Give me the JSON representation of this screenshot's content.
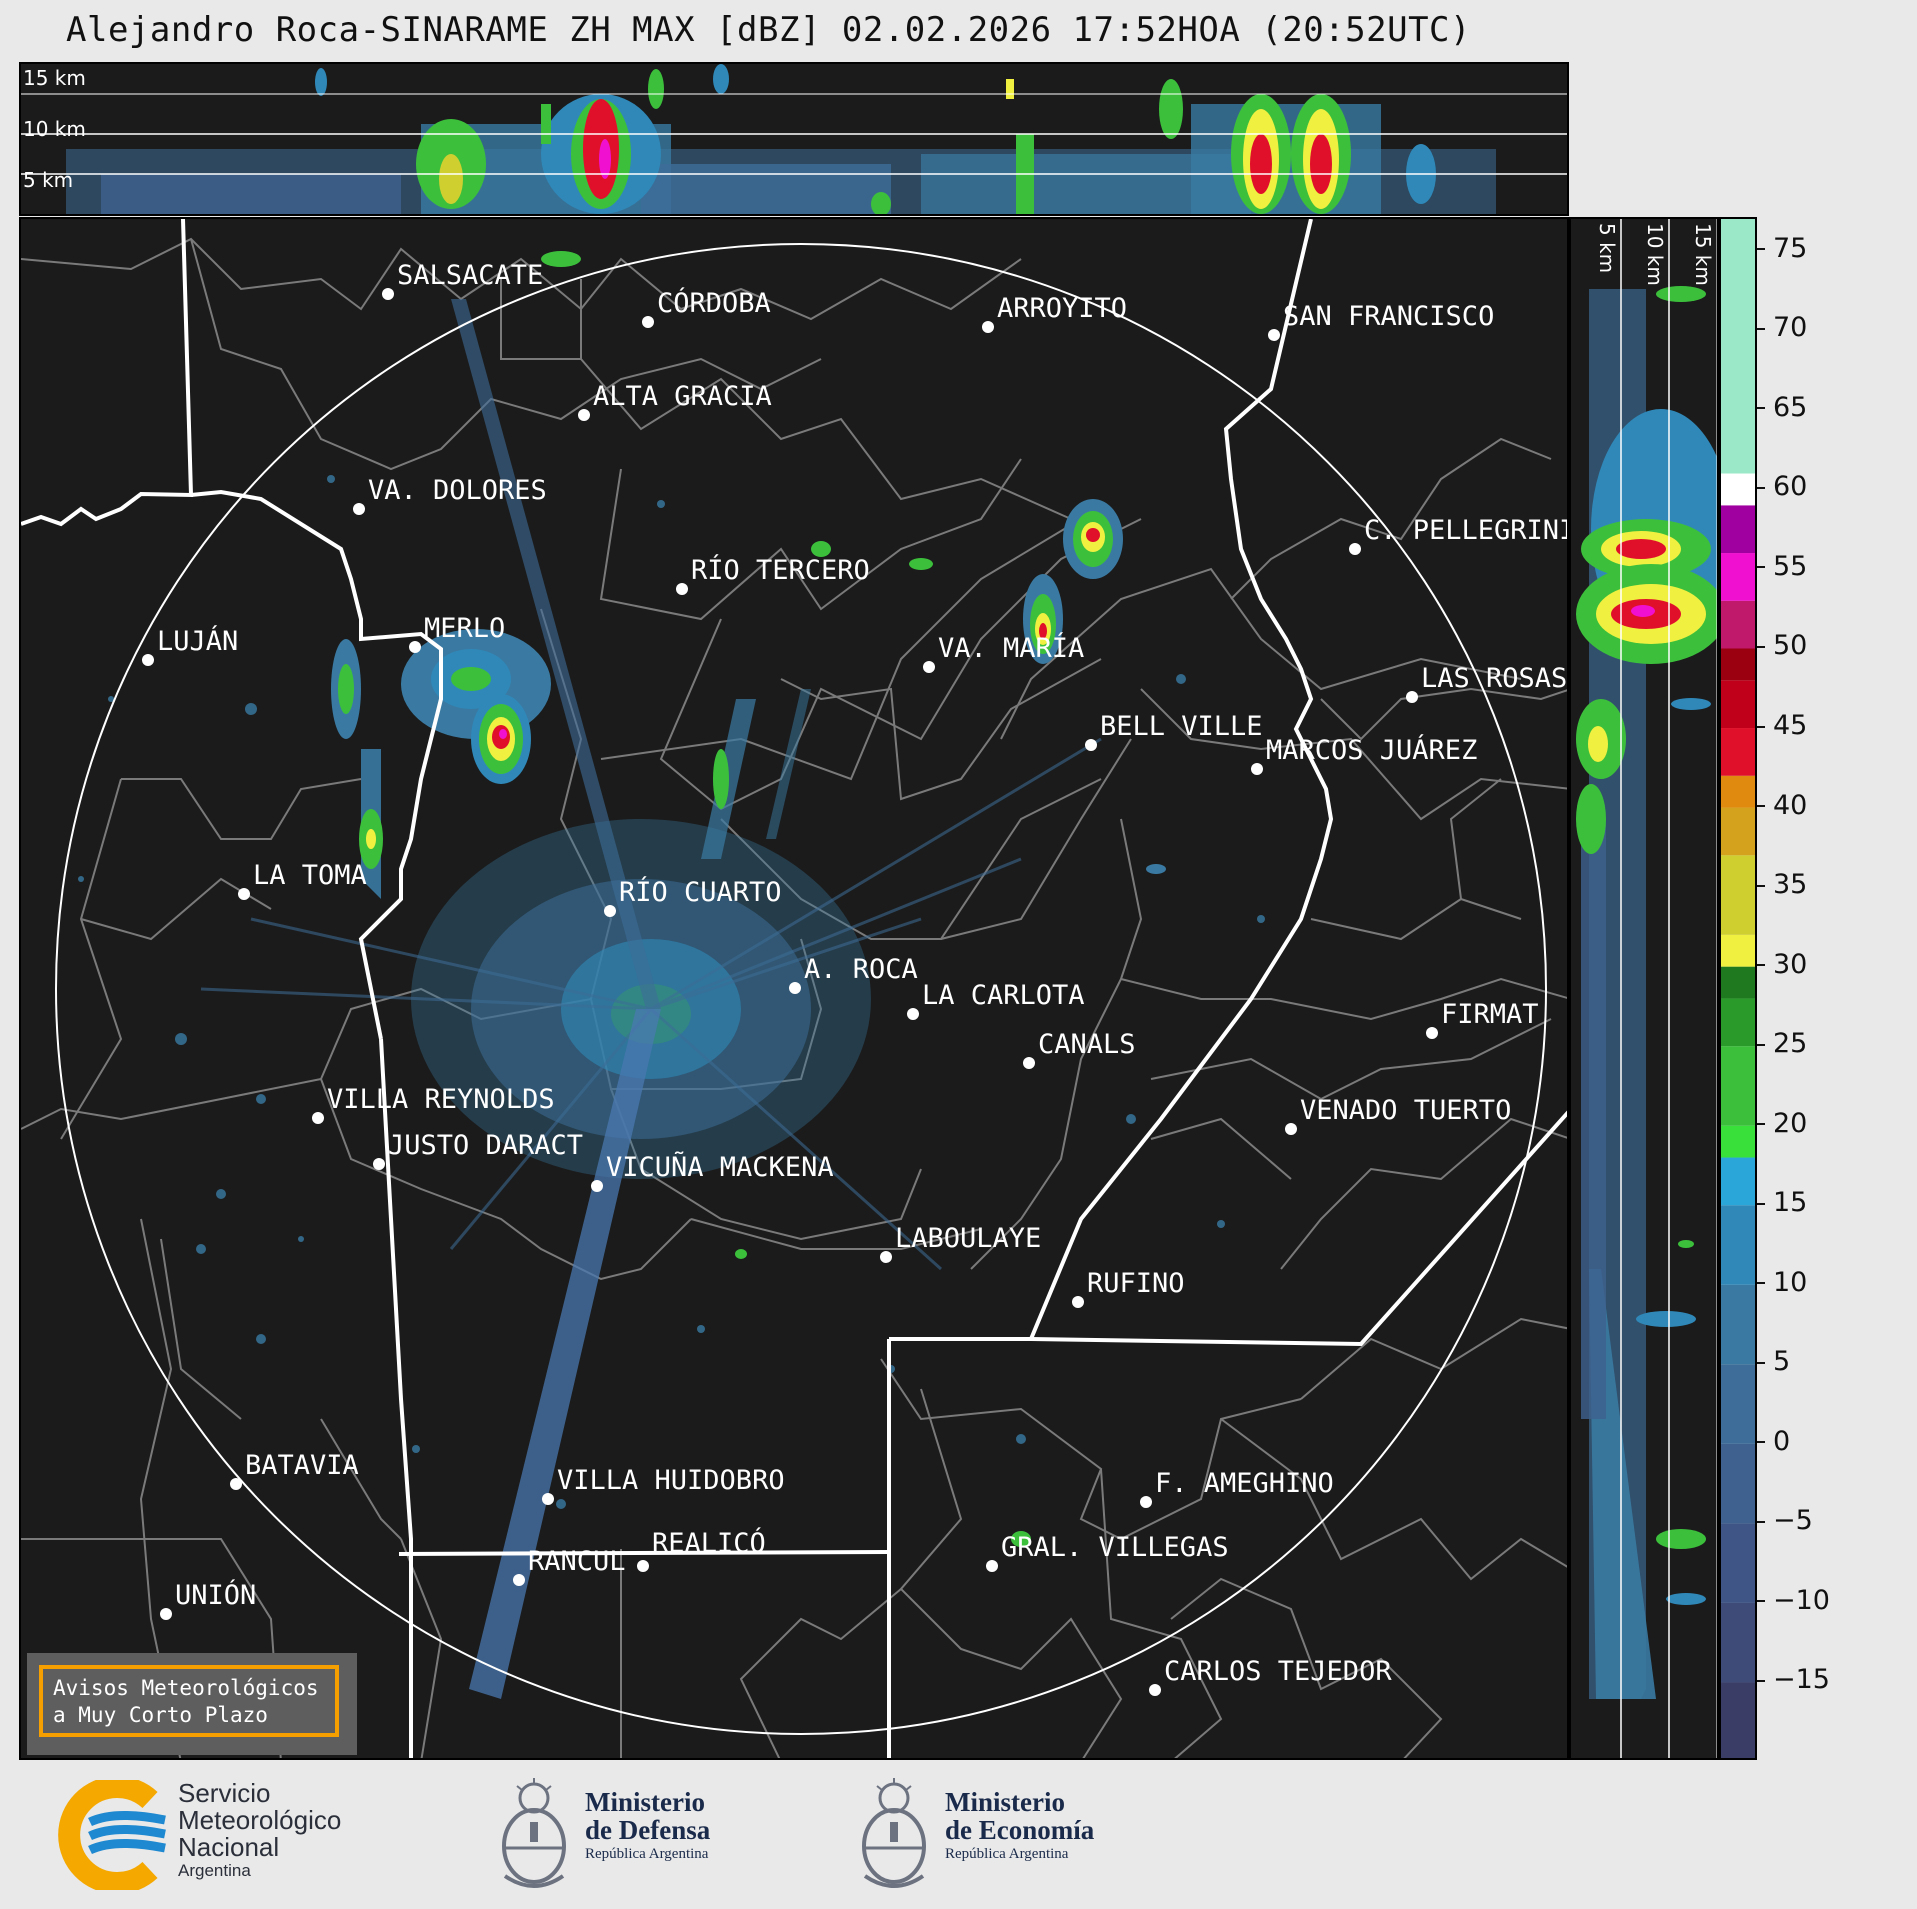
{
  "title": "Alejandro Roca-SINARAME ZH MAX [dBZ] 02.02.2026 17:52HOA (20:52UTC)",
  "top_panel": {
    "altitude_labels": [
      "15 km",
      "10 km",
      "5 km"
    ]
  },
  "side_panel": {
    "altitude_labels": [
      "5 km",
      "10 km",
      "15 km"
    ]
  },
  "colorbar": {
    "unit": "dBZ",
    "range": [
      -20,
      77
    ],
    "ticks": [
      "75",
      "70",
      "65",
      "60",
      "55",
      "50",
      "45",
      "40",
      "35",
      "30",
      "25",
      "20",
      "15",
      "10",
      "5",
      "0",
      "−5",
      "−10",
      "−15"
    ],
    "tick_values": [
      75,
      70,
      65,
      60,
      55,
      50,
      45,
      40,
      35,
      30,
      25,
      20,
      15,
      10,
      5,
      0,
      -5,
      -10,
      -15
    ],
    "color_stops": [
      {
        "from": -20,
        "to": -15,
        "color": "#3a3d66"
      },
      {
        "from": -15,
        "to": -10,
        "color": "#3e4a78"
      },
      {
        "from": -10,
        "to": -5,
        "color": "#3f5586"
      },
      {
        "from": -5,
        "to": 0,
        "color": "#3f618f"
      },
      {
        "from": 0,
        "to": 5,
        "color": "#3d6d98"
      },
      {
        "from": 5,
        "to": 10,
        "color": "#3a7aa2"
      },
      {
        "from": 10,
        "to": 15,
        "color": "#2f88b8"
      },
      {
        "from": 15,
        "to": 18,
        "color": "#2aa6d8"
      },
      {
        "from": 18,
        "to": 20,
        "color": "#39e03a"
      },
      {
        "from": 20,
        "to": 25,
        "color": "#3cc03c"
      },
      {
        "from": 25,
        "to": 28,
        "color": "#2a9a2a"
      },
      {
        "from": 28,
        "to": 30,
        "color": "#1f7a1f"
      },
      {
        "from": 30,
        "to": 32,
        "color": "#f0f040"
      },
      {
        "from": 32,
        "to": 37,
        "color": "#cfcf30"
      },
      {
        "from": 37,
        "to": 40,
        "color": "#d4a21c"
      },
      {
        "from": 40,
        "to": 42,
        "color": "#e08a10"
      },
      {
        "from": 42,
        "to": 45,
        "color": "#e0102a"
      },
      {
        "from": 45,
        "to": 48,
        "color": "#c0001a"
      },
      {
        "from": 48,
        "to": 50,
        "color": "#9a0010"
      },
      {
        "from": 50,
        "to": 53,
        "color": "#c0186a"
      },
      {
        "from": 53,
        "to": 56,
        "color": "#f010d0"
      },
      {
        "from": 56,
        "to": 59,
        "color": "#a000a0"
      },
      {
        "from": 59,
        "to": 61,
        "color": "#ffffff"
      },
      {
        "from": 61,
        "to": 77,
        "color": "#9ae8c8"
      }
    ]
  },
  "cities": [
    {
      "name": "SALSACATE"
    },
    {
      "name": "CÓRDOBA"
    },
    {
      "name": "ARROYITO"
    },
    {
      "name": "SAN FRANCISCO"
    },
    {
      "name": "ALTA GRACIA"
    },
    {
      "name": "VA. DOLORES"
    },
    {
      "name": "C. PELLEGRINI"
    },
    {
      "name": "RÍO TERCERO"
    },
    {
      "name": "LUJÁN"
    },
    {
      "name": "MERLO"
    },
    {
      "name": "VA. MARÍA"
    },
    {
      "name": "LAS ROSAS"
    },
    {
      "name": "BELL VILLE"
    },
    {
      "name": "MARCOS JUÁREZ"
    },
    {
      "name": "LA TOMA"
    },
    {
      "name": "RÍO CUARTO"
    },
    {
      "name": "A. ROCA"
    },
    {
      "name": "LA CARLOTA"
    },
    {
      "name": "CANALS"
    },
    {
      "name": "FIRMAT"
    },
    {
      "name": "VILLA REYNOLDS"
    },
    {
      "name": "JUSTO DARACT"
    },
    {
      "name": "VICUÑA MACKENA"
    },
    {
      "name": "VENADO TUERTO"
    },
    {
      "name": "LABOULAYE"
    },
    {
      "name": "RUFINO"
    },
    {
      "name": "BATAVIA"
    },
    {
      "name": "VILLA HUIDOBRO"
    },
    {
      "name": "F. AMEGHINO"
    },
    {
      "name": "RANCUL"
    },
    {
      "name": "REALICÓ"
    },
    {
      "name": "GRAL. VILLEGAS"
    },
    {
      "name": "UNIÓN"
    },
    {
      "name": "CARLOS TEJEDOR"
    }
  ],
  "warning": {
    "line1": "Avisos Meteorológicos",
    "line2": "a Muy Corto Plazo"
  },
  "logos": {
    "smn": {
      "line1": "Servicio",
      "line2": "Meteorológico",
      "line3": "Nacional",
      "line4": "Argentina",
      "colors": [
        "#f5a800",
        "#1e88d0"
      ]
    },
    "defensa": {
      "line1": "Ministerio",
      "line2": "de Defensa",
      "line3": "República Argentina"
    },
    "economia": {
      "line1": "Ministerio",
      "line2": "de Economía",
      "line3": "República Argentina"
    }
  }
}
